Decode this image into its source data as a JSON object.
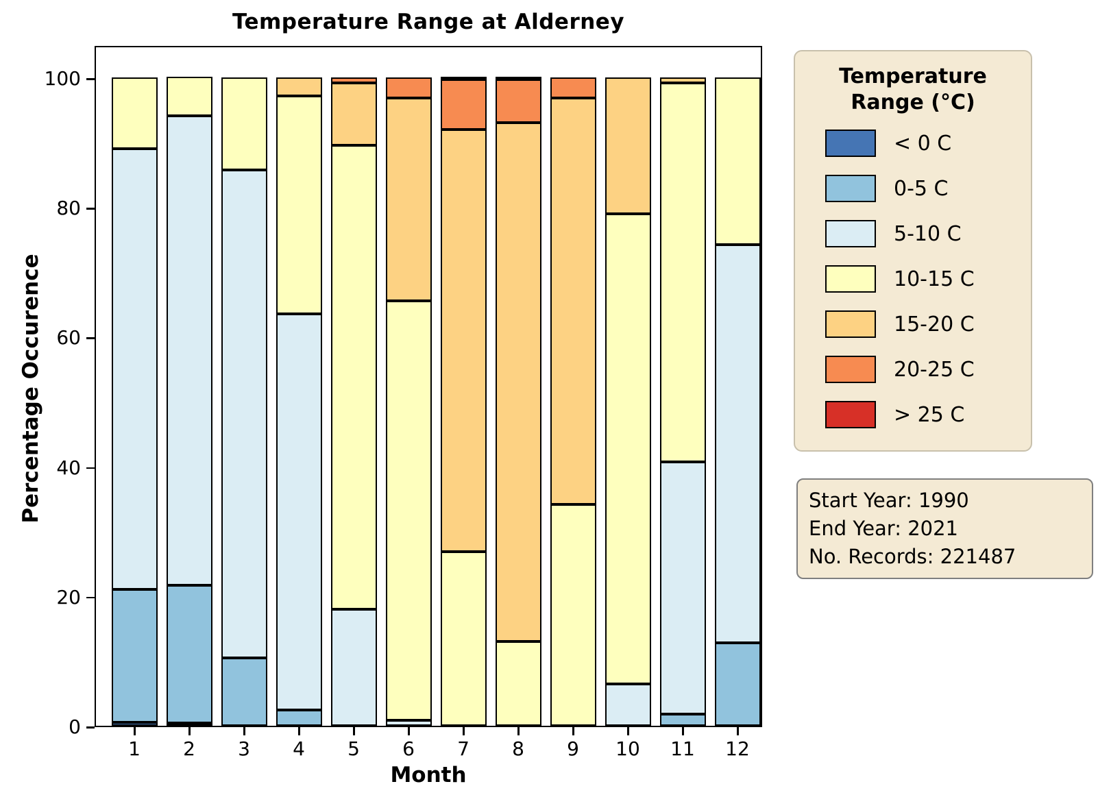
{
  "title": "Temperature Range at Alderney",
  "xlabel": "Month",
  "ylabel": "Percentage Occurence",
  "legend": {
    "title": "Temperature\nRange (°C)"
  },
  "infobox": {
    "start_year_line": "Start Year: 1990",
    "end_year_line": "End Year: 2021",
    "records_line": "No. Records: 221487"
  },
  "colors": {
    "frame": "#000000",
    "panel_bg": "#f4ead4",
    "legend_border": "#c8c0ac",
    "infobox_border": "#7f7f7f"
  },
  "chart_data": {
    "type": "bar",
    "stacked": true,
    "title": "Temperature Range at Alderney",
    "xlabel": "Month",
    "ylabel": "Percentage Occurence",
    "ylim": [
      0,
      100
    ],
    "yticks": [
      0,
      20,
      40,
      60,
      80,
      100
    ],
    "categories": [
      "1",
      "2",
      "3",
      "4",
      "5",
      "6",
      "7",
      "8",
      "9",
      "10",
      "11",
      "12"
    ],
    "legend_position": "right",
    "grid": false,
    "series": [
      {
        "name": "< 0 C",
        "color": "#4575b4",
        "values": [
          0.5,
          0.3,
          0,
          0,
          0,
          0,
          0,
          0,
          0,
          0,
          0,
          0
        ]
      },
      {
        "name": "0-5 C",
        "color": "#91c3dd",
        "values": [
          20.5,
          21.3,
          10.5,
          2.4,
          0,
          0,
          0,
          0,
          0,
          0,
          1.8,
          12.8
        ]
      },
      {
        "name": "5-10 C",
        "color": "#dbedf4",
        "values": [
          68.0,
          72.4,
          75.2,
          61.1,
          18.0,
          0.8,
          0,
          0,
          0,
          6.4,
          38.9,
          61.4
        ]
      },
      {
        "name": "10-15 C",
        "color": "#feffbe",
        "values": [
          11.0,
          6.0,
          14.3,
          33.6,
          71.5,
          64.7,
          26.9,
          13.0,
          34.1,
          72.6,
          58.5,
          25.8
        ]
      },
      {
        "name": "15-20 C",
        "color": "#fdd283",
        "values": [
          0,
          0,
          0,
          2.9,
          9.7,
          31.3,
          65.1,
          80.0,
          62.7,
          21.0,
          0.8,
          0
        ]
      },
      {
        "name": "20-25 C",
        "color": "#f78b51",
        "values": [
          0,
          0,
          0,
          0,
          0.8,
          3.2,
          7.7,
          6.7,
          3.2,
          0,
          0,
          0
        ]
      },
      {
        "name": "> 25 C",
        "color": "#d73027",
        "values": [
          0,
          0,
          0,
          0,
          0,
          0,
          0.3,
          0.3,
          0,
          0,
          0,
          0
        ]
      }
    ]
  }
}
